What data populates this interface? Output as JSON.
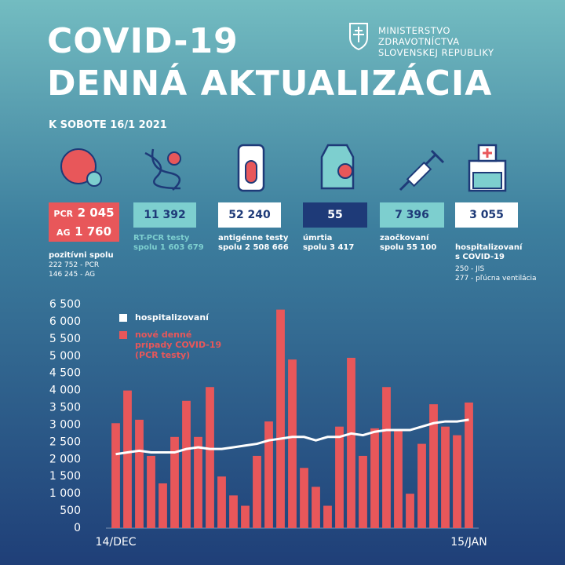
{
  "header": {
    "title_lines": [
      "COVID-19",
      "DENNÁ AKTUALIZÁCIA"
    ],
    "ministry_lines": [
      "MINISTERSTVO",
      "ZDRAVOTNÍCTVA",
      "SLOVENSKEJ REPUBLIKY"
    ],
    "date": "K SOBOTE 16/1 2021"
  },
  "stats": [
    {
      "parts": [
        {
          "label": "PCR",
          "value": "2 045"
        },
        {
          "label": "AG",
          "value": "1 760"
        }
      ],
      "notes": [
        "pozitívni spolu",
        "222 752 - PCR",
        "146 245 - AG"
      ]
    },
    {
      "value": "11 392",
      "notes": [
        "RT-PCR testy",
        "spolu 1 603 679"
      ]
    },
    {
      "value": "52 240",
      "notes": [
        "antigénne testy",
        "spolu 2 508 666"
      ]
    },
    {
      "value": "55",
      "notes": [
        "úmrtia",
        "spolu 3 417"
      ]
    },
    {
      "value": "7 396",
      "notes": [
        "zaočkovaní",
        "spolu 55 100"
      ]
    },
    {
      "value": "3 055",
      "notes": [
        "hospitalizovaní",
        "s COVID-19",
        "250 - JIS",
        "277 - pľúcna ventilácia"
      ]
    }
  ],
  "chart_data": {
    "type": "bar_line",
    "categories": [
      "14/DEC",
      null,
      null,
      null,
      null,
      null,
      null,
      null,
      null,
      null,
      null,
      null,
      null,
      null,
      null,
      null,
      null,
      null,
      null,
      null,
      null,
      null,
      null,
      null,
      null,
      null,
      null,
      null,
      null,
      null,
      "15/JAN"
    ],
    "series": [
      {
        "name": "hospitalizovaní",
        "type": "line",
        "color": "#ffffff",
        "values": [
          2150,
          2200,
          2250,
          2200,
          2200,
          2200,
          2300,
          2350,
          2300,
          2300,
          2350,
          2400,
          2450,
          2550,
          2600,
          2650,
          2650,
          2550,
          2650,
          2650,
          2750,
          2700,
          2800,
          2850,
          2850,
          2850,
          2950,
          3050,
          3100,
          3100,
          3150
        ]
      },
      {
        "name": "nové denné prípady COVID-19 (PCR testy)",
        "type": "bar",
        "color": "#e8575a",
        "values": [
          3050,
          4000,
          3150,
          2100,
          1300,
          2650,
          3700,
          2650,
          4100,
          1500,
          950,
          650,
          2100,
          3100,
          6350,
          4900,
          1750,
          1200,
          650,
          2950,
          4950,
          2100,
          2900,
          4100,
          2850,
          1000,
          2450,
          3600,
          2950,
          2700,
          3650
        ]
      }
    ],
    "ylim": [
      0,
      6500
    ],
    "yticks": [
      0,
      {
        "value": 500,
        "label": "500"
      },
      {
        "value": 1000,
        "label": "1 000"
      },
      {
        "value": 1500,
        "label": "1 500"
      },
      {
        "value": 2000,
        "label": "2 000"
      },
      {
        "value": 2500,
        "label": "2 500"
      },
      {
        "value": 3000,
        "label": "3 000"
      },
      {
        "value": 3500,
        "label": "3 500"
      },
      {
        "value": 4000,
        "label": "4 000"
      },
      {
        "value": 4500,
        "label": "4 500"
      },
      {
        "value": 5000,
        "label": "5 000"
      },
      {
        "value": 5500,
        "label": "5 500"
      },
      {
        "value": 6000,
        "label": "6 000"
      },
      {
        "value": 6500,
        "label": "6 500"
      }
    ]
  }
}
